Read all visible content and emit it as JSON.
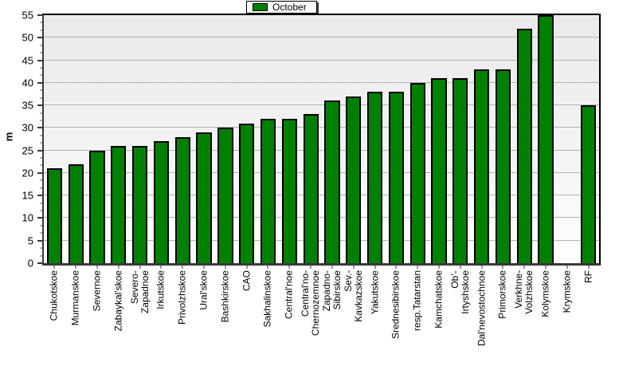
{
  "legend": {
    "label": "October"
  },
  "chart_data": {
    "type": "bar",
    "title": "",
    "legend": [
      "October"
    ],
    "legend_position": "top-center",
    "categories": [
      "Chukotskoe",
      "Murmanskoe",
      "Severnoe",
      "Zabaykal'skoe",
      "Severo-\nZapadnoe",
      "Irkutskoe",
      "Privolzhskoe",
      "Ural'skoe",
      "Bashkirskoe",
      "CAO",
      "Sakhalinskoe",
      "Central'noe",
      "Central'no-\nChernozemnoe",
      "Zapadno-\nSibirskoe",
      "Sev.-\nKavkazskoe",
      "Yakutskoe",
      "Srednesibirskoe",
      "resp.Tatarstan",
      "Kamchatskoe",
      "Ob'-\nIrtyshskoe",
      "Dal'nevostochnoe",
      "Primorskoe",
      "Verkhne-\nVolzhskoe",
      "Kolymskoe",
      "Krymskoe",
      "RF"
    ],
    "values": [
      21,
      22,
      25,
      26,
      26,
      27,
      28,
      29,
      30,
      31,
      32,
      32,
      33,
      36,
      37,
      38,
      38,
      40,
      41,
      41,
      43,
      43,
      52,
      55,
      null,
      35
    ],
    "xlabel": "",
    "ylabel": "m",
    "ylim": [
      0,
      55
    ],
    "ytick_step": 5,
    "grid": "horizontal",
    "colors": {
      "bar_fill": "#008000",
      "bar_border": "#000000",
      "gridline": "#b3b3b3",
      "plot_bg_top": "#eaeaea",
      "plot_bg_mid": "#f3f3f3",
      "plot_bg_bottom": "#ffffff",
      "axis": "#3a3a3a"
    }
  }
}
